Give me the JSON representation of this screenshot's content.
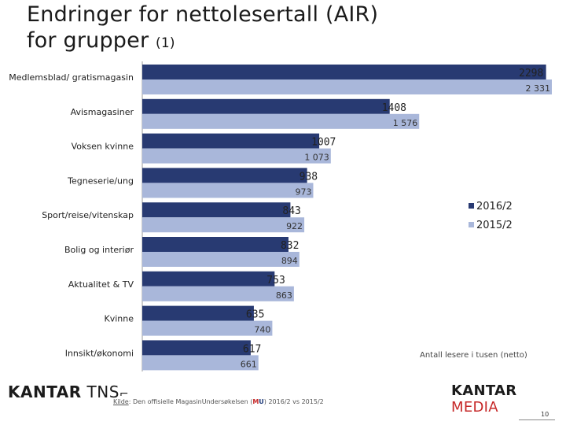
{
  "title": {
    "line1": "Endringer for nettolesertall (AIR)",
    "line2": "for grupper",
    "suffix": "(1)"
  },
  "chart_data": {
    "type": "bar",
    "orientation": "horizontal",
    "categories": [
      "Medlemsblad/ gratismagasin",
      "Avismagasiner",
      "Voksen kvinne",
      "Tegneserie/ung",
      "Sport/reise/vitenskap",
      "Bolig og interiør",
      "Aktualitet & TV",
      "Kvinne",
      "Innsikt/økonomi"
    ],
    "series": [
      {
        "name": "2016/2",
        "color": "#283a72",
        "values": [
          2298,
          1408,
          1007,
          938,
          843,
          832,
          753,
          635,
          617
        ],
        "labels": [
          "2298",
          "1408",
          "1007",
          "938",
          "843",
          "832",
          "753",
          "635",
          "617"
        ]
      },
      {
        "name": "2015/2",
        "color": "#a9b7da",
        "values": [
          2331,
          1576,
          1073,
          973,
          922,
          894,
          863,
          740,
          661
        ],
        "labels": [
          "2 331",
          "1 576",
          "1 073",
          "973",
          "922",
          "894",
          "863",
          "740",
          "661"
        ]
      }
    ],
    "xlim": [
      0,
      2331
    ],
    "annotation": "Antall lesere i tusen (netto)",
    "legend_position": "right"
  },
  "footer": {
    "logo_left_part1": "KANTAR",
    "logo_left_part2": "TNS",
    "logo_left_mark": "⌐",
    "logo_right_part1": "KANTAR",
    "logo_right_part2": "MEDIA",
    "source_label": "Kilde",
    "source_text_before": ": Den offisielle MagasinUndersøkelsen (",
    "source_mu_m": "M",
    "source_mu_u": "U",
    "source_text_after": ") 2016/2 vs 2015/2",
    "page_number": "10"
  }
}
